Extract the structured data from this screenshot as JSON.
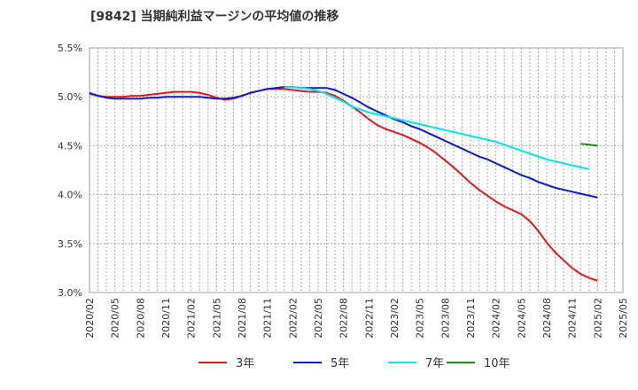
{
  "chart_data": {
    "type": "line",
    "title": "[9842]  当期純利益マージンの平均値の推移",
    "xlabel": "",
    "ylabel": "",
    "ylim": [
      3.0,
      5.5
    ],
    "grid": true,
    "legend_position": "bottom",
    "y_ticks": [
      "5.5%",
      "5.0%",
      "4.5%",
      "4.0%",
      "3.5%",
      "3.0%"
    ],
    "x_ticks": [
      "2020/02",
      "2020/05",
      "2020/08",
      "2020/11",
      "2021/02",
      "2021/05",
      "2021/08",
      "2021/11",
      "2022/02",
      "2022/05",
      "2022/08",
      "2022/11",
      "2023/02",
      "2023/05",
      "2023/08",
      "2023/11",
      "2024/02",
      "2024/05",
      "2024/08",
      "2024/11",
      "2025/02",
      "2025/05"
    ],
    "series": [
      {
        "name": "3年",
        "color": "#e31a1c",
        "start": "2020/02",
        "values": [
          5.03,
          5.01,
          5.0,
          5.0,
          5.0,
          5.01,
          5.01,
          5.02,
          5.03,
          5.04,
          5.05,
          5.05,
          5.05,
          5.04,
          5.02,
          4.99,
          4.97,
          4.98,
          5.01,
          5.04,
          5.06,
          5.08,
          5.08,
          5.08,
          5.07,
          5.06,
          5.05,
          5.05,
          5.04,
          5.01,
          4.96,
          4.9,
          4.84,
          4.77,
          4.71,
          4.67,
          4.64,
          4.61,
          4.57,
          4.53,
          4.48,
          4.42,
          4.35,
          4.28,
          4.2,
          4.12,
          4.05,
          3.99,
          3.93,
          3.88,
          3.84,
          3.8,
          3.73,
          3.63,
          3.51,
          3.41,
          3.33,
          3.25,
          3.19,
          3.15,
          3.12
        ]
      },
      {
        "name": "5年",
        "color": "#0b1bcc",
        "start": "2020/02",
        "values": [
          5.04,
          5.01,
          4.99,
          4.98,
          4.98,
          4.98,
          4.98,
          4.99,
          4.99,
          5.0,
          5.0,
          5.0,
          5.0,
          5.0,
          4.99,
          4.98,
          4.98,
          4.99,
          5.01,
          5.04,
          5.06,
          5.08,
          5.09,
          5.1,
          5.1,
          5.09,
          5.09,
          5.09,
          5.09,
          5.07,
          5.03,
          4.99,
          4.94,
          4.89,
          4.85,
          4.81,
          4.77,
          4.74,
          4.7,
          4.67,
          4.63,
          4.59,
          4.55,
          4.51,
          4.47,
          4.43,
          4.39,
          4.36,
          4.32,
          4.28,
          4.24,
          4.2,
          4.17,
          4.13,
          4.1,
          4.07,
          4.05,
          4.03,
          4.01,
          3.99,
          3.97
        ]
      },
      {
        "name": "7年",
        "color": "#00e5ee",
        "start": "2022/01",
        "values": [
          5.1,
          5.1,
          5.09,
          5.08,
          5.06,
          5.03,
          4.99,
          4.95,
          4.9,
          4.87,
          4.84,
          4.82,
          4.8,
          4.78,
          4.76,
          4.74,
          4.72,
          4.7,
          4.68,
          4.66,
          4.64,
          4.62,
          4.6,
          4.58,
          4.56,
          4.54,
          4.51,
          4.48,
          4.45,
          4.42,
          4.39,
          4.36,
          4.34,
          4.32,
          4.3,
          4.28,
          4.26
        ]
      },
      {
        "name": "10年",
        "color": "#228b22",
        "start": "2024/12",
        "values": [
          4.52,
          4.51,
          4.5
        ]
      }
    ]
  }
}
